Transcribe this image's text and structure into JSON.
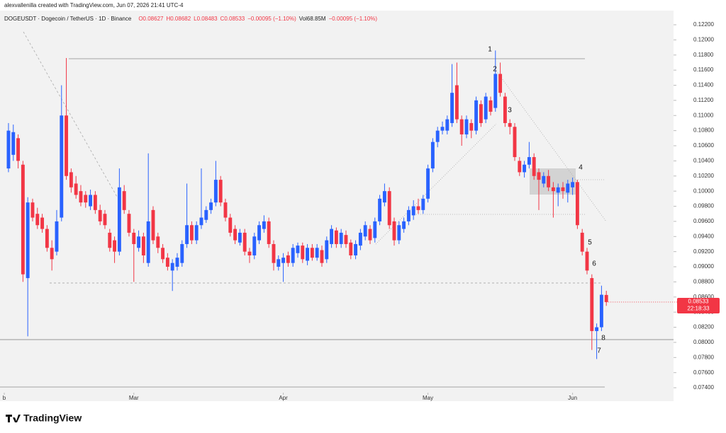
{
  "header": {
    "author_line": "alexvallenilla created with TradingView.com, Jun 07, 2026 21:41 UTC-4",
    "symbol": "DOGEUSDT · Dogecoin / TetherUS · 1D · Binance",
    "quote": [
      "O0.08627",
      "H0.08682",
      "L0.08483",
      "C0.08533",
      "−0.00095 (−1.10%)",
      "Vol68.85M",
      "−0.00095 (−1.10%)"
    ]
  },
  "chart_data": {
    "type": "candlestick",
    "up_color": "#2962ff",
    "down_color": "#f23645",
    "xlim": [
      -1.76,
      137.94
    ],
    "ylim": [
      0.07335,
      0.12387
    ],
    "xticks": [
      {
        "value": -1,
        "label": "b"
      },
      {
        "value": 26,
        "label": "Mar"
      },
      {
        "value": 57,
        "label": "Apr"
      },
      {
        "value": 87,
        "label": "May"
      },
      {
        "value": 117,
        "label": "Jun"
      }
    ],
    "yticks": [
      {
        "value": 0.122,
        "label": "0.12200"
      },
      {
        "value": 0.12,
        "label": "0.12000"
      },
      {
        "value": 0.118,
        "label": "0.11800"
      },
      {
        "value": 0.116,
        "label": "0.11600"
      },
      {
        "value": 0.114,
        "label": "0.11400"
      },
      {
        "value": 0.112,
        "label": "0.11200"
      },
      {
        "value": 0.11,
        "label": "0.11000"
      },
      {
        "value": 0.108,
        "label": "0.10800"
      },
      {
        "value": 0.106,
        "label": "0.10600"
      },
      {
        "value": 0.104,
        "label": "0.10400"
      },
      {
        "value": 0.102,
        "label": "0.10200"
      },
      {
        "value": 0.1,
        "label": "0.10000"
      },
      {
        "value": 0.098,
        "label": "0.09800"
      },
      {
        "value": 0.096,
        "label": "0.09600"
      },
      {
        "value": 0.094,
        "label": "0.09400"
      },
      {
        "value": 0.092,
        "label": "0.09200"
      },
      {
        "value": 0.09,
        "label": "0.09000"
      },
      {
        "value": 0.088,
        "label": "0.08800"
      },
      {
        "value": 0.086,
        "label": "0.08600"
      },
      {
        "value": 0.084,
        "label": "0.08400"
      },
      {
        "value": 0.082,
        "label": "0.08200"
      },
      {
        "value": 0.08,
        "label": "0.08000"
      },
      {
        "value": 0.078,
        "label": "0.07800"
      },
      {
        "value": 0.076,
        "label": "0.07600"
      },
      {
        "value": 0.074,
        "label": "0.07400"
      }
    ],
    "price_tag": {
      "price": "0.08533",
      "countdown": "22:18:33"
    },
    "annotations": [
      "1",
      "2",
      "3",
      "4",
      "5",
      "6",
      "7",
      "8"
    ],
    "ohlc": [
      [
        0.103,
        0.109,
        0.1025,
        0.108
      ],
      [
        0.1048,
        0.1088,
        0.104,
        0.1078
      ],
      [
        0.107,
        0.1075,
        0.103,
        0.104
      ],
      [
        0.1035,
        0.104,
        0.088,
        0.089
      ],
      [
        0.0885,
        0.0992,
        0.0808,
        0.0985
      ],
      [
        0.0985,
        0.099,
        0.096,
        0.0965
      ],
      [
        0.097,
        0.0978,
        0.095,
        0.0955
      ],
      [
        0.0965,
        0.097,
        0.0945,
        0.095
      ],
      [
        0.095,
        0.0955,
        0.092,
        0.0925
      ],
      [
        0.0925,
        0.0935,
        0.0895,
        0.091
      ],
      [
        0.092,
        0.0975,
        0.0915,
        0.096
      ],
      [
        0.0965,
        0.114,
        0.096,
        0.11
      ],
      [
        0.11,
        0.1176,
        0.1015,
        0.102
      ],
      [
        0.1025,
        0.103,
        0.0998,
        0.1005
      ],
      [
        0.101,
        0.102,
        0.099,
        0.0995
      ],
      [
        0.1,
        0.1008,
        0.098,
        0.0985
      ],
      [
        0.0995,
        0.1,
        0.0978,
        0.0985
      ],
      [
        0.098,
        0.1002,
        0.0975,
        0.0995
      ],
      [
        0.0995,
        0.1,
        0.097,
        0.0975
      ],
      [
        0.0975,
        0.0982,
        0.0955,
        0.096
      ],
      [
        0.097,
        0.0975,
        0.095,
        0.0955
      ],
      [
        0.0945,
        0.095,
        0.092,
        0.0925
      ],
      [
        0.0935,
        0.094,
        0.0905,
        0.092
      ],
      [
        0.092,
        0.103,
        0.0915,
        0.1005
      ],
      [
        0.1,
        0.1008,
        0.097,
        0.0975
      ],
      [
        0.097,
        0.0975,
        0.094,
        0.0945
      ],
      [
        0.0945,
        0.095,
        0.088,
        0.093
      ],
      [
        0.0925,
        0.0948,
        0.092,
        0.094
      ],
      [
        0.094,
        0.0945,
        0.0905,
        0.0915
      ],
      [
        0.0905,
        0.105,
        0.09,
        0.096
      ],
      [
        0.0975,
        0.098,
        0.093,
        0.0935
      ],
      [
        0.094,
        0.0945,
        0.0918,
        0.0925
      ],
      [
        0.0925,
        0.093,
        0.0905,
        0.091
      ],
      [
        0.0912,
        0.0918,
        0.0895,
        0.09
      ],
      [
        0.0895,
        0.091,
        0.0868,
        0.0905
      ],
      [
        0.09,
        0.0918,
        0.0895,
        0.0912
      ],
      [
        0.0905,
        0.0935,
        0.09,
        0.093
      ],
      [
        0.093,
        0.101,
        0.0925,
        0.0955
      ],
      [
        0.0955,
        0.096,
        0.093,
        0.0935
      ],
      [
        0.0935,
        0.096,
        0.093,
        0.0955
      ],
      [
        0.0955,
        0.103,
        0.095,
        0.0965
      ],
      [
        0.0962,
        0.098,
        0.0958,
        0.0975
      ],
      [
        0.0975,
        0.099,
        0.097,
        0.0985
      ],
      [
        0.0985,
        0.104,
        0.098,
        0.1015
      ],
      [
        0.1015,
        0.102,
        0.098,
        0.0985
      ],
      [
        0.0985,
        0.099,
        0.096,
        0.0965
      ],
      [
        0.0965,
        0.097,
        0.094,
        0.0945
      ],
      [
        0.095,
        0.0955,
        0.093,
        0.0935
      ],
      [
        0.0932,
        0.095,
        0.0928,
        0.0945
      ],
      [
        0.0945,
        0.095,
        0.0915,
        0.092
      ],
      [
        0.092,
        0.0925,
        0.0905,
        0.0915
      ],
      [
        0.0915,
        0.0945,
        0.091,
        0.094
      ],
      [
        0.0935,
        0.096,
        0.093,
        0.0955
      ],
      [
        0.095,
        0.0968,
        0.0945,
        0.096
      ],
      [
        0.096,
        0.0965,
        0.0925,
        0.093
      ],
      [
        0.093,
        0.0935,
        0.0895,
        0.0905
      ],
      [
        0.09,
        0.0915,
        0.0895,
        0.091
      ],
      [
        0.0905,
        0.0918,
        0.088,
        0.0912
      ],
      [
        0.0915,
        0.092,
        0.09,
        0.0905
      ],
      [
        0.0905,
        0.093,
        0.09,
        0.0925
      ],
      [
        0.0918,
        0.0932,
        0.0912,
        0.0928
      ],
      [
        0.0928,
        0.0932,
        0.0905,
        0.091
      ],
      [
        0.0908,
        0.093,
        0.0902,
        0.0925
      ],
      [
        0.0925,
        0.093,
        0.0908,
        0.0912
      ],
      [
        0.0912,
        0.093,
        0.0908,
        0.0925
      ],
      [
        0.0922,
        0.0928,
        0.09,
        0.0905
      ],
      [
        0.091,
        0.094,
        0.0905,
        0.0935
      ],
      [
        0.093,
        0.0955,
        0.0925,
        0.095
      ],
      [
        0.0948,
        0.0952,
        0.0925,
        0.093
      ],
      [
        0.093,
        0.095,
        0.0925,
        0.0945
      ],
      [
        0.0942,
        0.0948,
        0.0925,
        0.093
      ],
      [
        0.0932,
        0.0936,
        0.091,
        0.0915
      ],
      [
        0.0915,
        0.0935,
        0.091,
        0.093
      ],
      [
        0.0928,
        0.095,
        0.0922,
        0.0945
      ],
      [
        0.094,
        0.096,
        0.0935,
        0.0955
      ],
      [
        0.095,
        0.0955,
        0.093,
        0.0935
      ],
      [
        0.0938,
        0.0965,
        0.0932,
        0.096
      ],
      [
        0.096,
        0.0995,
        0.0955,
        0.099
      ],
      [
        0.0985,
        0.101,
        0.098,
        0.1
      ],
      [
        0.1,
        0.1005,
        0.095,
        0.0955
      ],
      [
        0.096,
        0.0965,
        0.0928,
        0.0935
      ],
      [
        0.0935,
        0.096,
        0.093,
        0.0955
      ],
      [
        0.095,
        0.0965,
        0.0945,
        0.096
      ],
      [
        0.096,
        0.098,
        0.0955,
        0.0975
      ],
      [
        0.0968,
        0.0988,
        0.0962,
        0.098
      ],
      [
        0.098,
        0.099,
        0.097,
        0.0975
      ],
      [
        0.0975,
        0.0995,
        0.097,
        0.099
      ],
      [
        0.099,
        0.1035,
        0.0985,
        0.103
      ],
      [
        0.103,
        0.107,
        0.1025,
        0.1065
      ],
      [
        0.1065,
        0.1085,
        0.1058,
        0.108
      ],
      [
        0.108,
        0.1092,
        0.1075,
        0.1085
      ],
      [
        0.108,
        0.11,
        0.1075,
        0.1095
      ],
      [
        0.109,
        0.1168,
        0.1085,
        0.113
      ],
      [
        0.114,
        0.117,
        0.109,
        0.1095
      ],
      [
        0.1095,
        0.11,
        0.106,
        0.1075
      ],
      [
        0.1075,
        0.11,
        0.107,
        0.1095
      ],
      [
        0.109,
        0.1095,
        0.107,
        0.108
      ],
      [
        0.108,
        0.1125,
        0.1075,
        0.112
      ],
      [
        0.1115,
        0.112,
        0.1085,
        0.109
      ],
      [
        0.1095,
        0.113,
        0.109,
        0.1125
      ],
      [
        0.112,
        0.1125,
        0.11,
        0.1105
      ],
      [
        0.111,
        0.1186,
        0.1105,
        0.1155
      ],
      [
        0.1155,
        0.117,
        0.1125,
        0.113
      ],
      [
        0.1125,
        0.113,
        0.1085,
        0.109
      ],
      [
        0.109,
        0.1095,
        0.1075,
        0.1085
      ],
      [
        0.1085,
        0.109,
        0.104,
        0.1045
      ],
      [
        0.104,
        0.1045,
        0.102,
        0.1025
      ],
      [
        0.1025,
        0.104,
        0.1018,
        0.1035
      ],
      [
        0.1035,
        0.1065,
        0.103,
        0.1045
      ],
      [
        0.1045,
        0.105,
        0.1015,
        0.102
      ],
      [
        0.1025,
        0.103,
        0.0975,
        0.1015
      ],
      [
        0.101,
        0.1025,
        0.1005,
        0.102
      ],
      [
        0.102,
        0.1028,
        0.1,
        0.1005
      ],
      [
        0.1005,
        0.1012,
        0.0965,
        0.1
      ],
      [
        0.0998,
        0.101,
        0.098,
        0.1005
      ],
      [
        0.1005,
        0.1012,
        0.099,
        0.1
      ],
      [
        0.0998,
        0.1015,
        0.0985,
        0.101
      ],
      [
        0.1005,
        0.1018,
        0.0995,
        0.1012
      ],
      [
        0.1012,
        0.1015,
        0.095,
        0.0955
      ],
      [
        0.0945,
        0.095,
        0.0915,
        0.092
      ],
      [
        0.092,
        0.0925,
        0.089,
        0.0895
      ],
      [
        0.0885,
        0.089,
        0.079,
        0.0815
      ],
      [
        0.0815,
        0.0825,
        0.0778,
        0.082
      ],
      [
        0.082,
        0.0875,
        0.0815,
        0.0863
      ],
      [
        0.08627,
        0.08682,
        0.08483,
        0.08533
      ]
    ]
  },
  "footer": {
    "brand": "TradingView"
  }
}
